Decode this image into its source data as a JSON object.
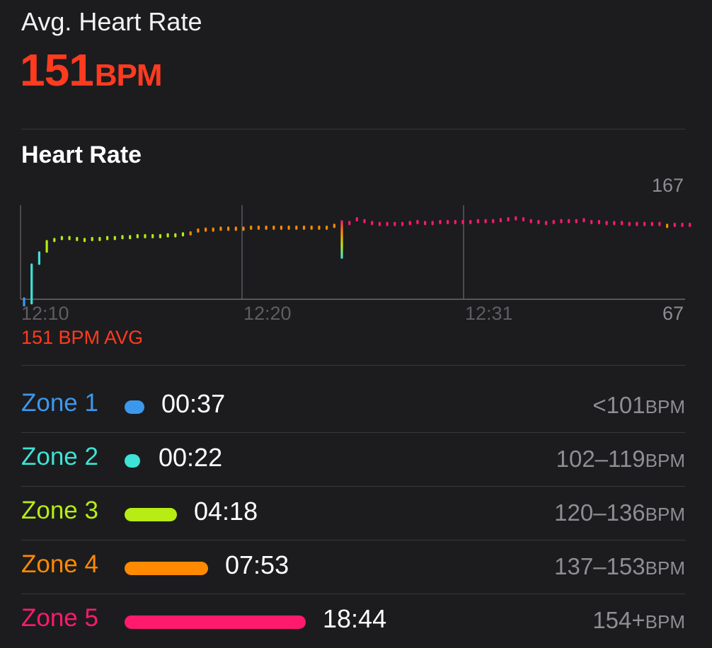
{
  "avg": {
    "title": "Avg. Heart Rate",
    "value": "151",
    "unit": "BPM"
  },
  "chart_section": {
    "title": "Heart Rate",
    "avg_label": "151 BPM AVG"
  },
  "chart_data": {
    "type": "line",
    "x_tick_labels": [
      "12:10",
      "12:20",
      "12:31"
    ],
    "y_top_label": "167",
    "y_bottom_label": "67",
    "ylim": [
      67,
      167
    ],
    "xlim_sample_index": [
      0,
      87
    ],
    "values": [
      60,
      102,
      115,
      127,
      130,
      132,
      132,
      131,
      130,
      131,
      131,
      132,
      132,
      133,
      133,
      134,
      134,
      134,
      134,
      135,
      135,
      136,
      137,
      140,
      141,
      141,
      142,
      142,
      142,
      142,
      143,
      143,
      143,
      143,
      143,
      143,
      143,
      143,
      143,
      143,
      143,
      145,
      110,
      148,
      152,
      150,
      148,
      147,
      147,
      147,
      147,
      148,
      149,
      148,
      148,
      149,
      149,
      149,
      149,
      149,
      150,
      150,
      150,
      151,
      152,
      153,
      152,
      150,
      149,
      148,
      149,
      150,
      150,
      150,
      151,
      149,
      149,
      148,
      148,
      148,
      147,
      147,
      147,
      147,
      147,
      145,
      146,
      146,
      146
    ],
    "colors": {
      "zone1": "#3c98ec",
      "zone2": "#3ee2d6",
      "zone3": "#b7ec14",
      "zone4": "#ff8a00",
      "zone5": "#ff1a6e"
    }
  },
  "zones": [
    {
      "name": "Zone 1",
      "time": "00:37",
      "minutes": 0.62,
      "range": "<101",
      "unit": "BPM",
      "color": "#3c98ec"
    },
    {
      "name": "Zone 2",
      "time": "00:22",
      "minutes": 0.37,
      "range": "102–119",
      "unit": "BPM",
      "color": "#3ee2d6"
    },
    {
      "name": "Zone 3",
      "time": "04:18",
      "minutes": 4.3,
      "range": "120–136",
      "unit": "BPM",
      "color": "#b7ec14"
    },
    {
      "name": "Zone 4",
      "time": "07:53",
      "minutes": 7.88,
      "range": "137–153",
      "unit": "BPM",
      "color": "#ff8a00"
    },
    {
      "name": "Zone 5",
      "time": "18:44",
      "minutes": 18.73,
      "range": "154+",
      "unit": "BPM",
      "color": "#ff1a6e"
    }
  ]
}
